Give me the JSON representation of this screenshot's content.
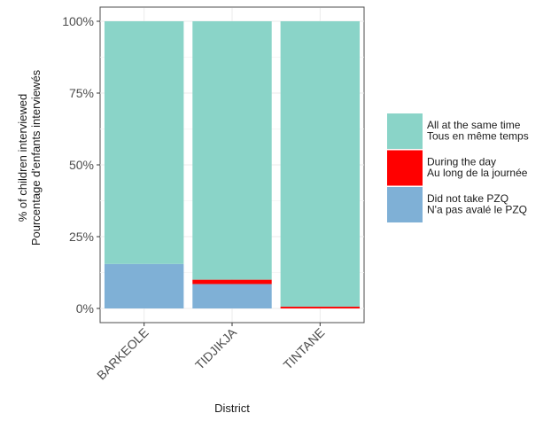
{
  "chart_data": {
    "type": "bar",
    "stacked": true,
    "categories": [
      "BARKEOLE",
      "TIDJIKJA",
      "TINTANE"
    ],
    "series": [
      {
        "name": "Did not take PZQ\nN'a pas avalé le PZQ",
        "color": "#7fb0d6",
        "values": [
          15.5,
          8.5,
          0.0
        ]
      },
      {
        "name": "During the day\nAu long de la journée",
        "color": "#ff0000",
        "values": [
          0.0,
          1.5,
          0.6
        ]
      },
      {
        "name": "All at the same time\nTous en même temps",
        "color": "#8ad4c8",
        "values": [
          84.5,
          90.0,
          99.4
        ]
      }
    ],
    "xlabel": "District",
    "ylabel": "% of children interviewed\nPourcentage d'enfants interviewés",
    "ylim": [
      0,
      100
    ],
    "yticks": [
      0,
      25,
      50,
      75,
      100
    ],
    "ytick_labels": [
      "0%",
      "25%",
      "50%",
      "75%",
      "100%"
    ],
    "legend_position": "right",
    "grid": true
  }
}
